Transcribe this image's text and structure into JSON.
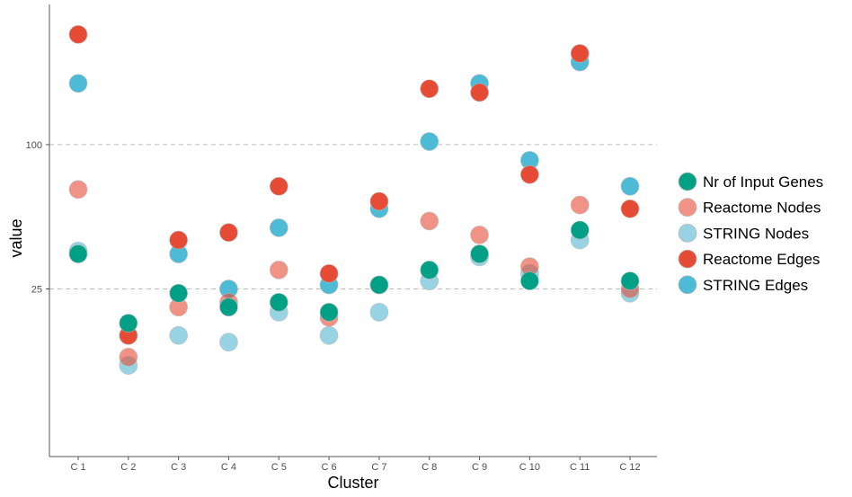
{
  "chart_data": {
    "type": "scatter",
    "title": "",
    "xlabel": "Cluster",
    "ylabel": "value",
    "y_scale": "log10",
    "ylim": [
      5,
      384
    ],
    "y_ticks": [
      25,
      100
    ],
    "y_tick_labels": [
      "25",
      "100"
    ],
    "grid": "horizontal dashed at y ticks",
    "legend_position": "right",
    "categories": [
      "C 1",
      "C 2",
      "C 3",
      "C 4",
      "C 5",
      "C 6",
      "C 7",
      "C 8",
      "C 9",
      "C 10",
      "C 11",
      "C 12"
    ],
    "series": [
      {
        "name": "STRING Edges",
        "color": "#4dbbd5",
        "opacity": 1,
        "values": [
          180,
          16,
          35,
          25,
          45,
          26,
          54,
          103,
          180,
          86,
          221,
          67
        ]
      },
      {
        "name": "Reactome Edges",
        "color": "#e64b35",
        "opacity": 1,
        "values": [
          288,
          16,
          40,
          43,
          67,
          29,
          58,
          171,
          165,
          75,
          240,
          54
        ]
      },
      {
        "name": "STRING Nodes",
        "color": "#91d1e2",
        "opacity": 0.95,
        "values": [
          36,
          12,
          16,
          15,
          20,
          16,
          20,
          27,
          34,
          29,
          40,
          24
        ]
      },
      {
        "name": "Reactome Nodes",
        "color": "#e64b35",
        "opacity": 0.6,
        "values": [
          65,
          13,
          21,
          22,
          30,
          19,
          26,
          48,
          42,
          31,
          56,
          25
        ]
      },
      {
        "name": "Nr of Input Genes",
        "color": "#00a087",
        "opacity": 1,
        "values": [
          35,
          18,
          24,
          21,
          22,
          20,
          26,
          30,
          35,
          27,
          44,
          27
        ]
      }
    ],
    "legend": [
      {
        "name": "Nr of Input Genes",
        "color": "#00a087",
        "opacity": 1
      },
      {
        "name": "Reactome Nodes",
        "color": "#e64b35",
        "opacity": 0.6
      },
      {
        "name": "STRING Nodes",
        "color": "#91d1e2",
        "opacity": 0.95
      },
      {
        "name": "Reactome Edges",
        "color": "#e64b35",
        "opacity": 1
      },
      {
        "name": "STRING Edges",
        "color": "#4dbbd5",
        "opacity": 1
      }
    ]
  }
}
